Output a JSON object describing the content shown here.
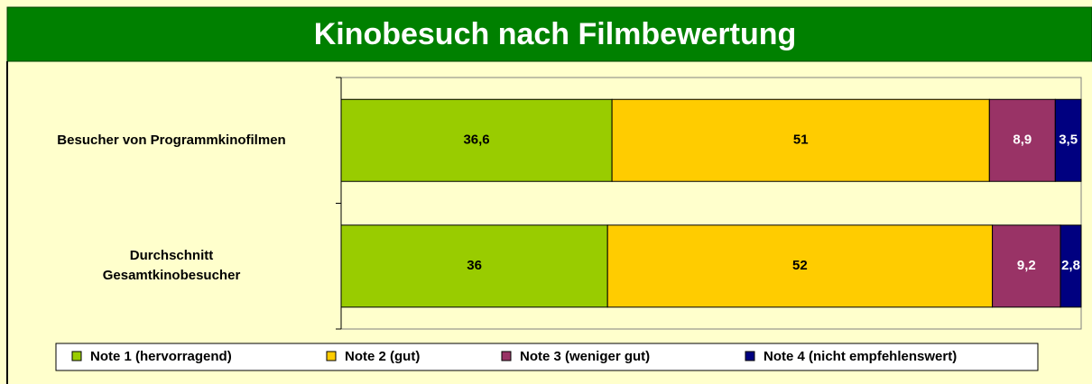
{
  "chart_data": {
    "type": "stacked_bar_horizontal",
    "title": "Kinobesuch nach Filmbewertung",
    "categories": [
      "Besucher von Programmkinofilmen",
      "Durchschnitt\nGesamtkinobesucher"
    ],
    "xlim": [
      0,
      100
    ],
    "series": [
      {
        "name": "Note 1 (hervorragend)",
        "color": "#99cc00",
        "label_color": "#000000",
        "values": [
          36.6,
          36
        ],
        "value_labels": [
          "36,6",
          "36"
        ]
      },
      {
        "name": "Note 2 (gut)",
        "color": "#ffcc00",
        "label_color": "#000000",
        "values": [
          51,
          52
        ],
        "value_labels": [
          "51",
          "52"
        ]
      },
      {
        "name": "Note 3 (weniger gut)",
        "color": "#993366",
        "label_color": "#ffffff",
        "values": [
          8.9,
          9.2
        ],
        "value_labels": [
          "8,9",
          "9,2"
        ]
      },
      {
        "name": "Note 4 (nicht empfehlenswert)",
        "color": "#000080",
        "label_color": "#ffffff",
        "values": [
          3.5,
          2.8
        ],
        "value_labels": [
          "3,5",
          "2,8"
        ]
      }
    ],
    "legend": "bottom"
  }
}
